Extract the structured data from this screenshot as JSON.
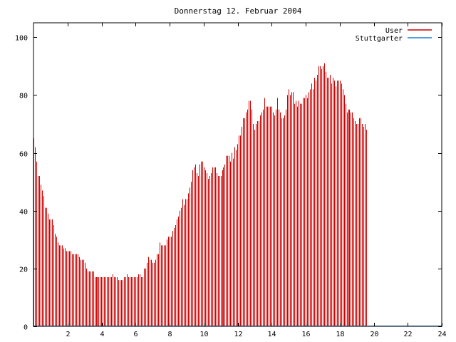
{
  "colors": {
    "user": "#cc0000",
    "stuttgarter": "#1e7fd6",
    "axis": "#000000",
    "background": "#ffffff"
  },
  "chart_data": {
    "type": "bar",
    "title": "Donnerstag 12. Februar 2004",
    "xlabel": "",
    "ylabel": "",
    "xlim": [
      0,
      24
    ],
    "ylim": [
      0,
      105
    ],
    "xticks": [
      2,
      4,
      6,
      8,
      10,
      12,
      14,
      16,
      18,
      20,
      22,
      24
    ],
    "yticks": [
      0,
      20,
      40,
      60,
      80,
      100
    ],
    "grid": false,
    "legend_position": "top-right",
    "legend": [
      "User",
      "Stuttgarter"
    ],
    "series": [
      {
        "name": "User",
        "x_start": 0,
        "x_step": 0.0833,
        "values": [
          65,
          62,
          57,
          52,
          52,
          49,
          47,
          45,
          41,
          41,
          39,
          37,
          37,
          37,
          35,
          32,
          31,
          29,
          28,
          28,
          28,
          27,
          27,
          26,
          26,
          26,
          26,
          25,
          25,
          25,
          25,
          25,
          24,
          23,
          23,
          23,
          22,
          20,
          19,
          19,
          19,
          19,
          19,
          17,
          17,
          17,
          17,
          17,
          17,
          17,
          17,
          17,
          17,
          17,
          17,
          17,
          18,
          17,
          17,
          17,
          16,
          16,
          16,
          16,
          17,
          17,
          18,
          17,
          17,
          17,
          17,
          17,
          17,
          17,
          18,
          18,
          17,
          17,
          20,
          20,
          22,
          24,
          23,
          23,
          22,
          22,
          23,
          25,
          25,
          29,
          28,
          28,
          28,
          28,
          30,
          31,
          31,
          31,
          33,
          34,
          35,
          37,
          38,
          40,
          41,
          44,
          42,
          44,
          44,
          46,
          48,
          50,
          54,
          55,
          56,
          53,
          52,
          56,
          57,
          57,
          55,
          54,
          53,
          51,
          52,
          53,
          55,
          55,
          55,
          53,
          52,
          52,
          52,
          54,
          55,
          56,
          59,
          59,
          59,
          57,
          60,
          58,
          62,
          61,
          63,
          66,
          66,
          69,
          72,
          72,
          74,
          75,
          78,
          78,
          75,
          70,
          68,
          70,
          71,
          71,
          73,
          74,
          75,
          79,
          76,
          76,
          76,
          76,
          76,
          74,
          73,
          75,
          79,
          75,
          74,
          72,
          72,
          73,
          75,
          80,
          82,
          80,
          81,
          81,
          77,
          78,
          76,
          78,
          77,
          77,
          79,
          79,
          80,
          79,
          81,
          82,
          84,
          82,
          86,
          85,
          87,
          90,
          90,
          89,
          90,
          91,
          88,
          86,
          86,
          87,
          84,
          86,
          85,
          83,
          85,
          85,
          85,
          84,
          82,
          80,
          77,
          74,
          75,
          75,
          74,
          74,
          72,
          71,
          70,
          70,
          72,
          72,
          70,
          69,
          70,
          68
        ]
      },
      {
        "name": "Stuttgarter",
        "values": []
      }
    ]
  }
}
